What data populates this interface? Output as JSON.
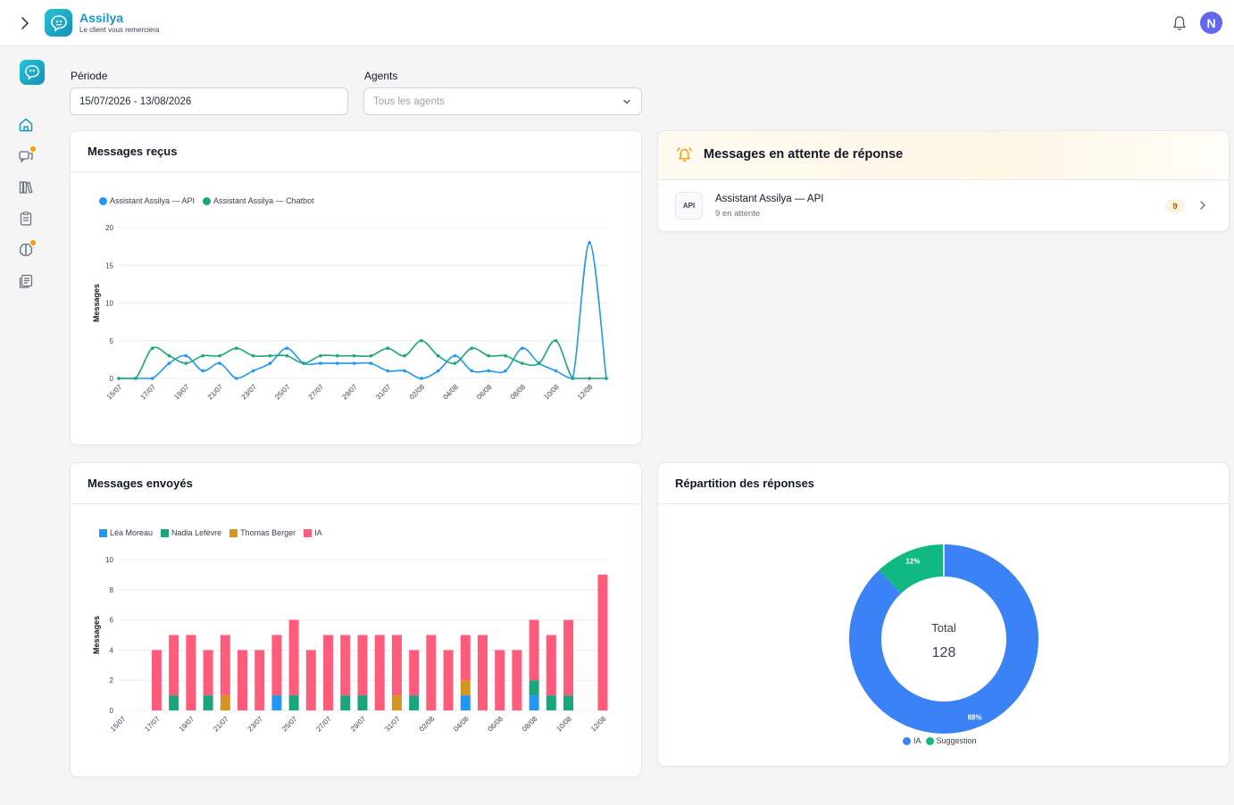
{
  "brand": {
    "name": "Assilya",
    "tagline": "Le client vous remerciera"
  },
  "header": {
    "avatar_initial": "N"
  },
  "sidebar": {
    "items": [
      {
        "icon": "home-icon",
        "active": true,
        "dot": false
      },
      {
        "icon": "chat-icon",
        "active": false,
        "dot": true
      },
      {
        "icon": "library-icon",
        "active": false,
        "dot": false
      },
      {
        "icon": "clipboard-icon",
        "active": false,
        "dot": false
      },
      {
        "icon": "brain-icon",
        "active": false,
        "dot": true
      },
      {
        "icon": "document-icon",
        "active": false,
        "dot": false
      }
    ]
  },
  "filters": {
    "period_label": "Période",
    "period_value": "15/07/2026 - 13/08/2026",
    "agents_label": "Agents",
    "agents_placeholder": "Tous les agents"
  },
  "received": {
    "title": "Messages reçus",
    "legend": [
      "Assistant Assilya — API",
      "Assistant Assilya — Chatbot"
    ]
  },
  "sent": {
    "title": "Messages envoyés",
    "legend": [
      "Léa Moreau",
      "Nadia Lefèvre",
      "Thomas Berger",
      "IA"
    ]
  },
  "pending": {
    "title": "Messages en attente de réponse",
    "items": [
      {
        "badge": "API",
        "name": "Assistant Assilya — API",
        "sub": "9 en attente",
        "count": "9"
      }
    ]
  },
  "distribution": {
    "title": "Répartition des réponses",
    "total_label": "Total",
    "total_value": "128",
    "legend": [
      "IA",
      "Suggestion"
    ]
  },
  "colors": {
    "api": "#2196f3",
    "chatbot": "#1aa67a",
    "lea": "#2196f3",
    "nadia": "#1aa67a",
    "thomas": "#d4961e",
    "ia": "#ff5c7c",
    "donut_ia": "#3b82f6",
    "donut_sugg": "#10b981",
    "accent": "#1a9ac0"
  },
  "chart_data": [
    {
      "type": "line",
      "title": "Messages reçus",
      "ylabel": "Messages",
      "ylim": [
        0,
        20
      ],
      "yticks": [
        0,
        5,
        10,
        15,
        20
      ],
      "x": [
        "15/07",
        "16/07",
        "17/07",
        "18/07",
        "19/07",
        "20/07",
        "21/07",
        "22/07",
        "23/07",
        "24/07",
        "25/07",
        "26/07",
        "27/07",
        "28/07",
        "29/07",
        "30/07",
        "31/07",
        "01/08",
        "02/08",
        "03/08",
        "04/08",
        "05/08",
        "06/08",
        "07/08",
        "08/08",
        "09/08",
        "10/08",
        "11/08",
        "12/08",
        "13/08"
      ],
      "xticks": [
        "15/07",
        "17/07",
        "19/07",
        "21/07",
        "23/07",
        "25/07",
        "27/07",
        "29/07",
        "31/07",
        "02/08",
        "04/08",
        "06/08",
        "08/08",
        "10/08",
        "12/08"
      ],
      "series": [
        {
          "name": "Assistant Assilya — API",
          "values": [
            0,
            0,
            0,
            2,
            3,
            1,
            2,
            0,
            1,
            2,
            4,
            2,
            2,
            2,
            2,
            2,
            1,
            1,
            0,
            1,
            3,
            1,
            1,
            1,
            4,
            2,
            1,
            0,
            18,
            0
          ]
        },
        {
          "name": "Assistant Assilya — Chatbot",
          "values": [
            0,
            0,
            4,
            3,
            2,
            3,
            3,
            4,
            3,
            3,
            3,
            2,
            3,
            3,
            3,
            3,
            4,
            3,
            5,
            3,
            2,
            4,
            3,
            3,
            2,
            2,
            5,
            0,
            0,
            0
          ]
        }
      ],
      "legend_position": "top-left",
      "grid": true
    },
    {
      "type": "bar",
      "stacked": true,
      "title": "Messages envoyés",
      "ylabel": "Messages",
      "ylim": [
        0,
        10
      ],
      "yticks": [
        0,
        2,
        4,
        6,
        8,
        10
      ],
      "categories": [
        "15/07",
        "16/07",
        "17/07",
        "18/07",
        "19/07",
        "20/07",
        "21/07",
        "22/07",
        "23/07",
        "24/07",
        "25/07",
        "26/07",
        "27/07",
        "28/07",
        "29/07",
        "30/07",
        "31/07",
        "01/08",
        "02/08",
        "03/08",
        "04/08",
        "05/08",
        "06/08",
        "07/08",
        "08/08",
        "09/08",
        "10/08",
        "11/08",
        "12/08"
      ],
      "xticks": [
        "15/07",
        "17/07",
        "19/07",
        "21/07",
        "23/07",
        "25/07",
        "27/07",
        "29/07",
        "31/07",
        "02/08",
        "04/08",
        "06/08",
        "08/08",
        "10/08",
        "12/08"
      ],
      "series": [
        {
          "name": "Léa Moreau",
          "values": [
            0,
            0,
            0,
            0,
            0,
            0,
            0,
            0,
            0,
            1,
            0,
            0,
            0,
            0,
            0,
            0,
            0,
            0,
            0,
            0,
            1,
            0,
            0,
            0,
            1,
            0,
            0,
            0,
            0
          ]
        },
        {
          "name": "Nadia Lefèvre",
          "values": [
            0,
            0,
            0,
            1,
            0,
            1,
            0,
            0,
            0,
            0,
            1,
            0,
            0,
            1,
            1,
            0,
            0,
            1,
            0,
            0,
            0,
            0,
            0,
            0,
            1,
            1,
            1,
            0,
            0
          ]
        },
        {
          "name": "Thomas Berger",
          "values": [
            0,
            0,
            0,
            0,
            0,
            0,
            1,
            0,
            0,
            0,
            0,
            0,
            0,
            0,
            0,
            0,
            1,
            0,
            0,
            0,
            1,
            0,
            0,
            0,
            0,
            0,
            0,
            0,
            0
          ]
        },
        {
          "name": "IA",
          "values": [
            0,
            0,
            4,
            4,
            5,
            3,
            4,
            4,
            4,
            4,
            5,
            4,
            5,
            4,
            4,
            5,
            4,
            3,
            5,
            4,
            3,
            5,
            4,
            4,
            4,
            4,
            5,
            0,
            9
          ]
        }
      ],
      "legend_position": "top-left",
      "grid": true
    },
    {
      "type": "pie",
      "donut": true,
      "title": "Répartition des réponses",
      "categories": [
        "IA",
        "Suggestion"
      ],
      "values": [
        88,
        12
      ],
      "labels": [
        "88%",
        "12%"
      ],
      "center": {
        "label": "Total",
        "value": 128
      },
      "legend_position": "bottom"
    }
  ]
}
